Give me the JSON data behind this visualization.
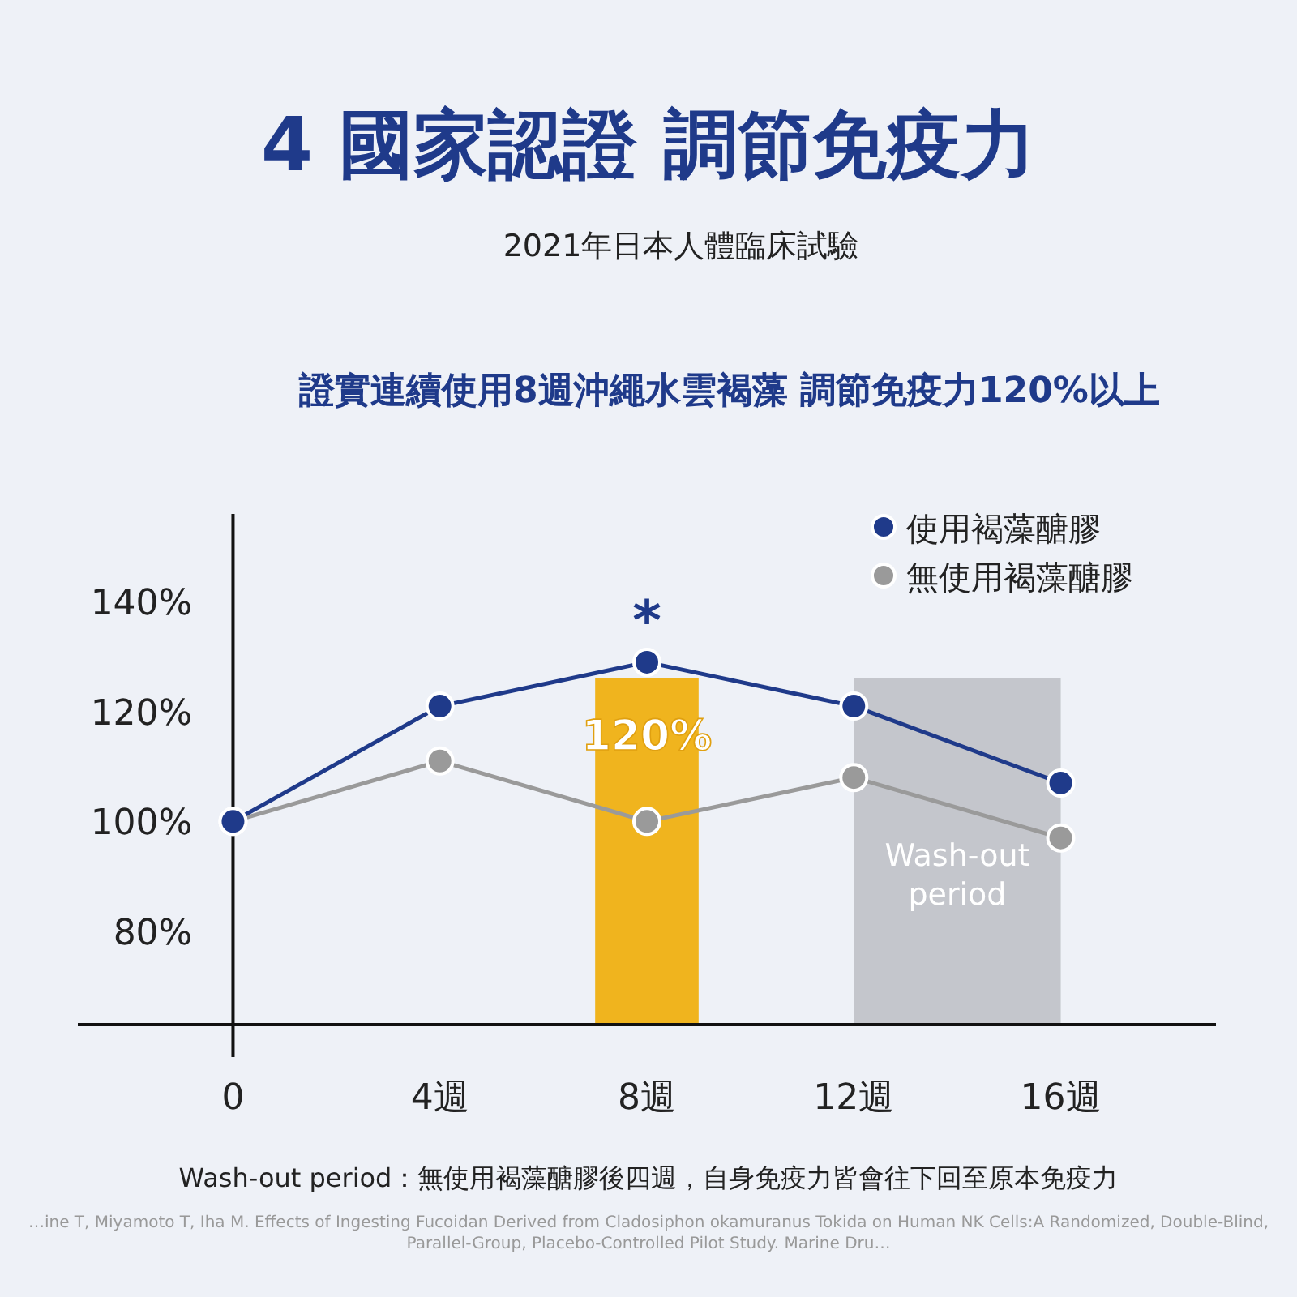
{
  "chart_data": {
    "type": "line",
    "title": "4 國家認證 調節免疫力",
    "subtitle": "2021年日本人體臨床試驗",
    "annotations": [
      "證實連續使用8週沖繩水雲褐藻 調節免疫力120%以上",
      {
        "text": "*",
        "x": 8,
        "y": 129
      },
      "Wash-out period：無使用褐藻醣膠後四週，自身免疫力皆會往下回至原本免疫力",
      "…ine T, Miyamoto T, Iha M. Effects of Ingesting Fucoidan Derived from Cladosiphon okamuranus Tokida on Human NK Cells:A Randomized, Double-Blind, Parallel-Group, Placebo-Controlled Pilot Study. Marine Dru…"
    ],
    "x": [
      0,
      4,
      8,
      12,
      16
    ],
    "xlim": [
      -3,
      19
    ],
    "ylim": [
      63,
      156
    ],
    "xticks": [
      0,
      {
        "value": 4,
        "label": "4週"
      },
      {
        "value": 8,
        "label": "8週"
      },
      {
        "value": 12,
        "label": "12週"
      },
      {
        "value": 16,
        "label": "16週"
      }
    ],
    "yticks": [
      {
        "value": 80,
        "label": "80%"
      },
      {
        "value": 100,
        "label": "100%"
      },
      {
        "value": 120,
        "label": "120%"
      },
      {
        "value": 140,
        "label": "140%"
      }
    ],
    "series": [
      {
        "name": "使用褐藻醣膠",
        "color": "#1f3a8a",
        "values": [
          100,
          121,
          129,
          121,
          107
        ]
      },
      {
        "name": "無使用褐藻醣膠",
        "color": "#9a9a9a",
        "values": [
          100,
          111,
          100,
          108,
          97
        ]
      }
    ],
    "bands": [
      {
        "axis": "x",
        "from": 7,
        "to": 9,
        "label": "120%",
        "color": "#f0b41e"
      },
      {
        "axis": "x",
        "from": 12,
        "to": 16,
        "label": "Wash-out period",
        "color": "#c4c6cc"
      }
    ],
    "marker": "circle",
    "line_style": "solid",
    "grid": false,
    "legend": "top right"
  }
}
